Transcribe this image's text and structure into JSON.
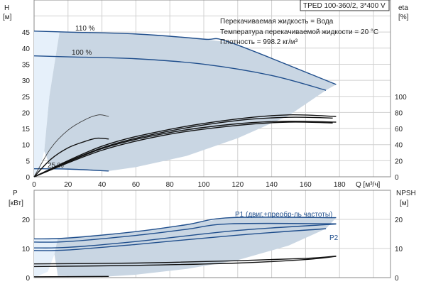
{
  "chart_data": [
    {
      "type": "line",
      "title": "TPED 100-360/2, 3*400 V",
      "info": [
        "Перекачиваемая жидкость = Вода",
        "Температура перекачиваемой жидкости = 20 °C",
        "Плотность = 998.2 кг/м³"
      ],
      "ylabel": "H",
      "yunit": "[м]",
      "y2label": "eta",
      "y2unit": "[%]",
      "xlabel": "Q [м³/ч]",
      "xticks": [
        0,
        20,
        40,
        60,
        80,
        100,
        120,
        140,
        160,
        180
      ],
      "yticks": [
        0,
        5,
        10,
        15,
        20,
        25,
        30,
        35,
        40,
        45
      ],
      "y2ticks": [
        0,
        20,
        40,
        60,
        80,
        100
      ],
      "xlim": [
        0,
        210
      ],
      "ylim": [
        0,
        55
      ],
      "y2lim": [
        0,
        220
      ],
      "series": [
        {
          "name": "110 %",
          "axis": "H",
          "color": "#1f4e8c",
          "points": [
            [
              0,
              45.3
            ],
            [
              20,
              45
            ],
            [
              60,
              44.4
            ],
            [
              100,
              42.8
            ],
            [
              116,
              41.7
            ],
            [
              178,
              28.7
            ]
          ]
        },
        {
          "name": "100 %",
          "axis": "H",
          "color": "#1f4e8c",
          "points": [
            [
              0,
              37.6
            ],
            [
              20,
              37.3
            ],
            [
              60,
              36.7
            ],
            [
              100,
              35
            ],
            [
              140,
              31.5
            ],
            [
              172,
              26.9
            ]
          ]
        },
        {
          "name": "25 %",
          "axis": "H",
          "color": "#1f4e8c",
          "points": [
            [
              0,
              2.5
            ],
            [
              20,
              2.4
            ],
            [
              44,
              1.8
            ]
          ]
        },
        {
          "name": "eta-25-a",
          "axis": "eta",
          "color": "#333",
          "points": [
            [
              0,
              0
            ],
            [
              10,
              36
            ],
            [
              20,
              58
            ],
            [
              30,
              71
            ],
            [
              38,
              77
            ],
            [
              44,
              75
            ]
          ]
        },
        {
          "name": "eta-25-b",
          "axis": "eta",
          "color": "#111",
          "points": [
            [
              0,
              0
            ],
            [
              10,
              22
            ],
            [
              20,
              36
            ],
            [
              30,
              44
            ],
            [
              37,
              48
            ],
            [
              44,
              47
            ]
          ]
        },
        {
          "name": "eta-110",
          "axis": "eta",
          "color": "#111",
          "points": [
            [
              0,
              0
            ],
            [
              40,
              38
            ],
            [
              80,
              59
            ],
            [
              120,
              72
            ],
            [
              150,
              77
            ],
            [
              178,
              75
            ]
          ]
        },
        {
          "name": "eta-100",
          "axis": "eta",
          "color": "#111",
          "points": [
            [
              0,
              0
            ],
            [
              40,
              36
            ],
            [
              80,
              57
            ],
            [
              120,
              70
            ],
            [
              150,
              74
            ],
            [
              176,
              73
            ]
          ]
        },
        {
          "name": "eta-90",
          "axis": "eta",
          "color": "#111",
          "points": [
            [
              0,
              0
            ],
            [
              40,
              35
            ],
            [
              80,
              55
            ],
            [
              120,
              66
            ],
            [
              150,
              69
            ],
            [
              178,
              68
            ]
          ]
        },
        {
          "name": "eta-80",
          "axis": "eta",
          "color": "#111",
          "points": [
            [
              0,
              0
            ],
            [
              40,
              33
            ],
            [
              80,
              53
            ],
            [
              120,
              64
            ],
            [
              150,
              68
            ],
            [
              176,
              67
            ]
          ]
        }
      ],
      "area_dark": [
        [
          15,
          45
        ],
        [
          60,
          44.4
        ],
        [
          100,
          42.8
        ],
        [
          116,
          41.7
        ],
        [
          178,
          28.7
        ],
        [
          172,
          26.9
        ],
        [
          150,
          19
        ],
        [
          120,
          12
        ],
        [
          90,
          6.5
        ],
        [
          60,
          3
        ],
        [
          44,
          1.8
        ],
        [
          10,
          2.4
        ],
        [
          6,
          8
        ],
        [
          9,
          25
        ],
        [
          15,
          45
        ]
      ],
      "area_light": [
        [
          0,
          45.3
        ],
        [
          15,
          45
        ],
        [
          9,
          25
        ],
        [
          6,
          8
        ],
        [
          3,
          2
        ],
        [
          0,
          0
        ]
      ]
    },
    {
      "type": "line",
      "ylabel": "P",
      "yunit": "[кВт]",
      "y2label": "NPSH",
      "y2unit": "[м]",
      "yticks": [
        0,
        10,
        20
      ],
      "y2ticks": [
        0,
        10,
        20
      ],
      "ylim": [
        0,
        30
      ],
      "annotations": [
        "P1 (двиг.+преобр-ль частоты)",
        "P2"
      ],
      "series": [
        {
          "name": "P1 110%",
          "color": "#1f4e8c",
          "points": [
            [
              0,
              13.3
            ],
            [
              20,
              13.6
            ],
            [
              60,
              15.8
            ],
            [
              90,
              18.2
            ],
            [
              116,
              20.6
            ],
            [
              178,
              20.6
            ]
          ]
        },
        {
          "name": "P1 100%",
          "color": "#1f4e8c",
          "points": [
            [
              0,
              12.2
            ],
            [
              20,
              12.4
            ],
            [
              60,
              14.5
            ],
            [
              90,
              16.6
            ],
            [
              116,
              18.5
            ],
            [
              178,
              18.5
            ]
          ]
        },
        {
          "name": "P2 110%",
          "color": "#1f4e8c",
          "points": [
            [
              0,
              10.2
            ],
            [
              20,
              10.4
            ],
            [
              60,
              12.4
            ],
            [
              120,
              16.2
            ],
            [
              178,
              18.4
            ]
          ]
        },
        {
          "name": "P2 100%",
          "color": "#1f4e8c",
          "points": [
            [
              0,
              9.3
            ],
            [
              20,
              9.5
            ],
            [
              60,
              11.4
            ],
            [
              120,
              14.6
            ],
            [
              172,
              16.8
            ]
          ]
        },
        {
          "name": "NPSH a",
          "color": "#111",
          "points": [
            [
              0,
              4.7
            ],
            [
              60,
              5
            ],
            [
              120,
              5.8
            ],
            [
              160,
              6.6
            ],
            [
              178,
              7.4
            ]
          ]
        },
        {
          "name": "NPSH b",
          "color": "#111",
          "points": [
            [
              0,
              3.8
            ],
            [
              60,
              4.2
            ],
            [
              120,
              5
            ],
            [
              160,
              6.2
            ],
            [
              178,
              7.3
            ]
          ]
        },
        {
          "name": "P 25%",
          "color": "#111",
          "points": [
            [
              0,
              0.3
            ],
            [
              44,
              0.4
            ]
          ]
        }
      ],
      "area_dark": [
        [
          14,
          13.6
        ],
        [
          60,
          15.8
        ],
        [
          116,
          20.6
        ],
        [
          178,
          20.6
        ],
        [
          172,
          16.8
        ],
        [
          150,
          11
        ],
        [
          120,
          6
        ],
        [
          90,
          3
        ],
        [
          60,
          1
        ],
        [
          44,
          0.4
        ],
        [
          14,
          0.6
        ],
        [
          12,
          8
        ],
        [
          14,
          13.6
        ]
      ],
      "area_light": [
        [
          0,
          13.3
        ],
        [
          14,
          13.6
        ],
        [
          12,
          8
        ],
        [
          8,
          2
        ],
        [
          0,
          0
        ]
      ]
    }
  ]
}
